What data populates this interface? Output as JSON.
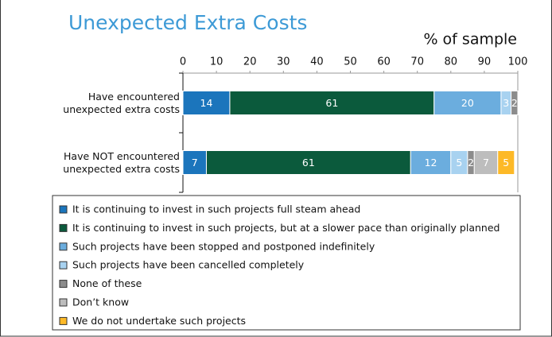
{
  "chart_data": {
    "type": "stacked_barh",
    "title": "Unexpected Extra Costs",
    "xlabel": "% of sample",
    "categories": [
      "Have encountered unexpected extra costs",
      "Have NOT encountered unexpected extra costs"
    ],
    "series": [
      {
        "name": "It is continuing to invest in such projects full steam ahead",
        "color": "#1b75bc",
        "values": [
          14,
          7
        ]
      },
      {
        "name": "It is continuing to invest in such projects, but at a slower pace than originally planned",
        "color": "#0b5a3c",
        "values": [
          61,
          61
        ]
      },
      {
        "name": "Such projects have been stopped and postponed indefinitely",
        "color": "#6badde",
        "values": [
          20,
          12
        ]
      },
      {
        "name": "Such projects have been cancelled completely",
        "color": "#a8d2f0",
        "values": [
          3,
          5
        ]
      },
      {
        "name": "None of these",
        "color": "#8c8c8c",
        "values": [
          2,
          2
        ]
      },
      {
        "name": "Don’t know",
        "color": "#bdbdbd",
        "values": [
          null,
          7
        ]
      },
      {
        "name": "We do not undertake such projects",
        "color": "#fdb927",
        "values": [
          null,
          5
        ]
      }
    ],
    "xlim": [
      0,
      100
    ],
    "xticks": [
      0,
      10,
      20,
      30,
      40,
      50,
      60,
      70,
      80,
      90,
      100
    ]
  }
}
